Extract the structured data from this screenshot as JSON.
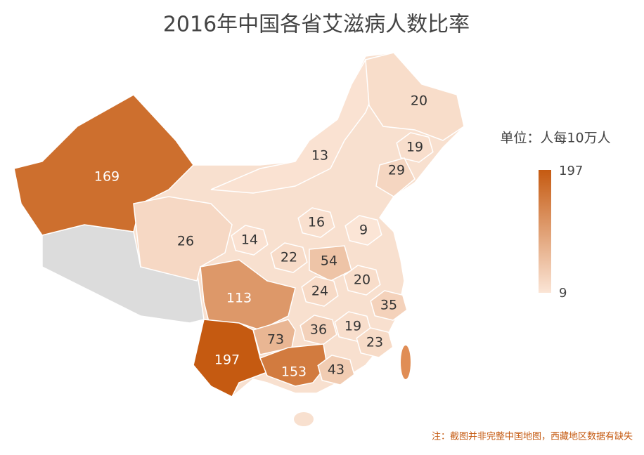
{
  "title": "2016年中国各省艾滋病人数比率",
  "legend": {
    "title": "单位：人每10万人",
    "max": 197,
    "min": 9,
    "max_color": "#c55a11",
    "min_color": "#fbe5d6"
  },
  "regions": {
    "values": [
      169,
      26,
      14,
      13,
      20,
      19,
      29,
      16,
      9,
      22,
      54,
      20,
      24,
      113,
      35,
      73,
      36,
      19,
      23,
      197,
      153,
      43
    ]
  },
  "note": "注：截图并非完整中国地图，西藏地区数据有缺失"
}
